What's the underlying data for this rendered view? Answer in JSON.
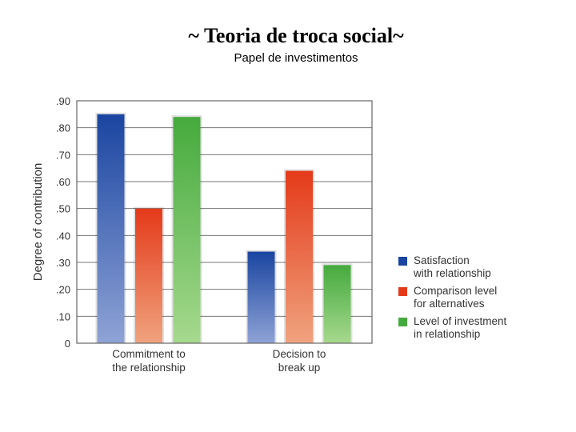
{
  "header": {
    "title": "~ Teoria de troca social~",
    "subtitle": "Papel de investimentos"
  },
  "chart_data": {
    "type": "bar",
    "ylabel": "Degree of contribution",
    "ylim": [
      0,
      0.9
    ],
    "yticks": [
      0,
      0.1,
      0.2,
      0.3,
      0.4,
      0.5,
      0.6,
      0.7,
      0.8,
      0.9
    ],
    "ytick_labels": [
      "0",
      ".10",
      ".20",
      ".30",
      ".40",
      ".50",
      ".60",
      ".70",
      ".80",
      ".90"
    ],
    "categories": [
      "Commitment to\nthe relationship",
      "Decision to\nbreak up"
    ],
    "grid": true,
    "legend_position": "right",
    "series": [
      {
        "name": "Satisfaction\nwith relationship",
        "values": [
          0.85,
          0.34
        ],
        "color": "#1a45a0"
      },
      {
        "name": "Comparison level\nfor alternatives",
        "values": [
          0.5,
          0.64
        ],
        "color": "#e43a1a"
      },
      {
        "name": "Level of investment\nin relationship",
        "values": [
          0.84,
          0.29
        ],
        "color": "#45aa3d"
      }
    ]
  }
}
